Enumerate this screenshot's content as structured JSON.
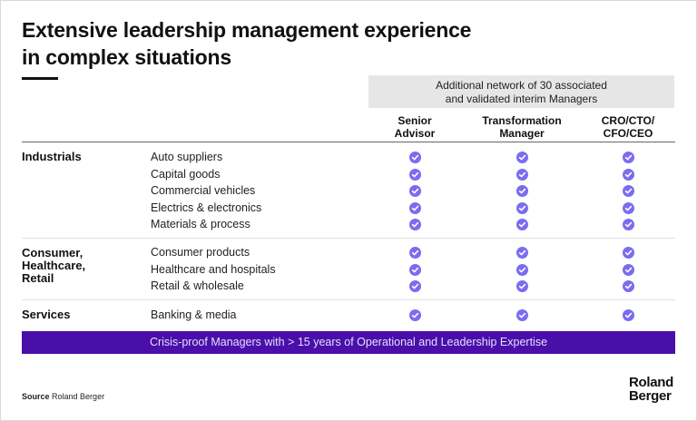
{
  "title_line1": "Extensive leadership management experience",
  "title_line2": "in complex situations",
  "network": {
    "line1": "Additional network of 30 associated",
    "line2": "and validated interim Managers"
  },
  "columns": [
    {
      "line1": "Senior",
      "line2": "Advisor"
    },
    {
      "line1": "Transformation",
      "line2": "Manager"
    },
    {
      "line1": "CRO/CTO/",
      "line2": "CFO/CEO"
    }
  ],
  "categories": [
    {
      "label_lines": [
        "Industrials"
      ],
      "items": [
        "Auto suppliers",
        "Capital goods",
        "Commercial vehicles",
        "Electrics & electronics",
        "Materials & process"
      ]
    },
    {
      "label_lines": [
        "Consumer,",
        "Healthcare,",
        "Retail"
      ],
      "items": [
        "Consumer products",
        "Healthcare and hospitals",
        "Retail & wholesale"
      ]
    },
    {
      "label_lines": [
        "Services"
      ],
      "items": [
        "Banking & media"
      ]
    }
  ],
  "banner": "Crisis-proof Managers with > 15 years of Operational and Leadership Expertise",
  "source_label": "Source",
  "source_value": "Roland Berger",
  "logo": {
    "line1": "Roland",
    "line2": "Berger"
  },
  "colors": {
    "check": "#7b6cf0",
    "banner": "#4a0fa8",
    "network_bg": "#e6e6e6"
  }
}
